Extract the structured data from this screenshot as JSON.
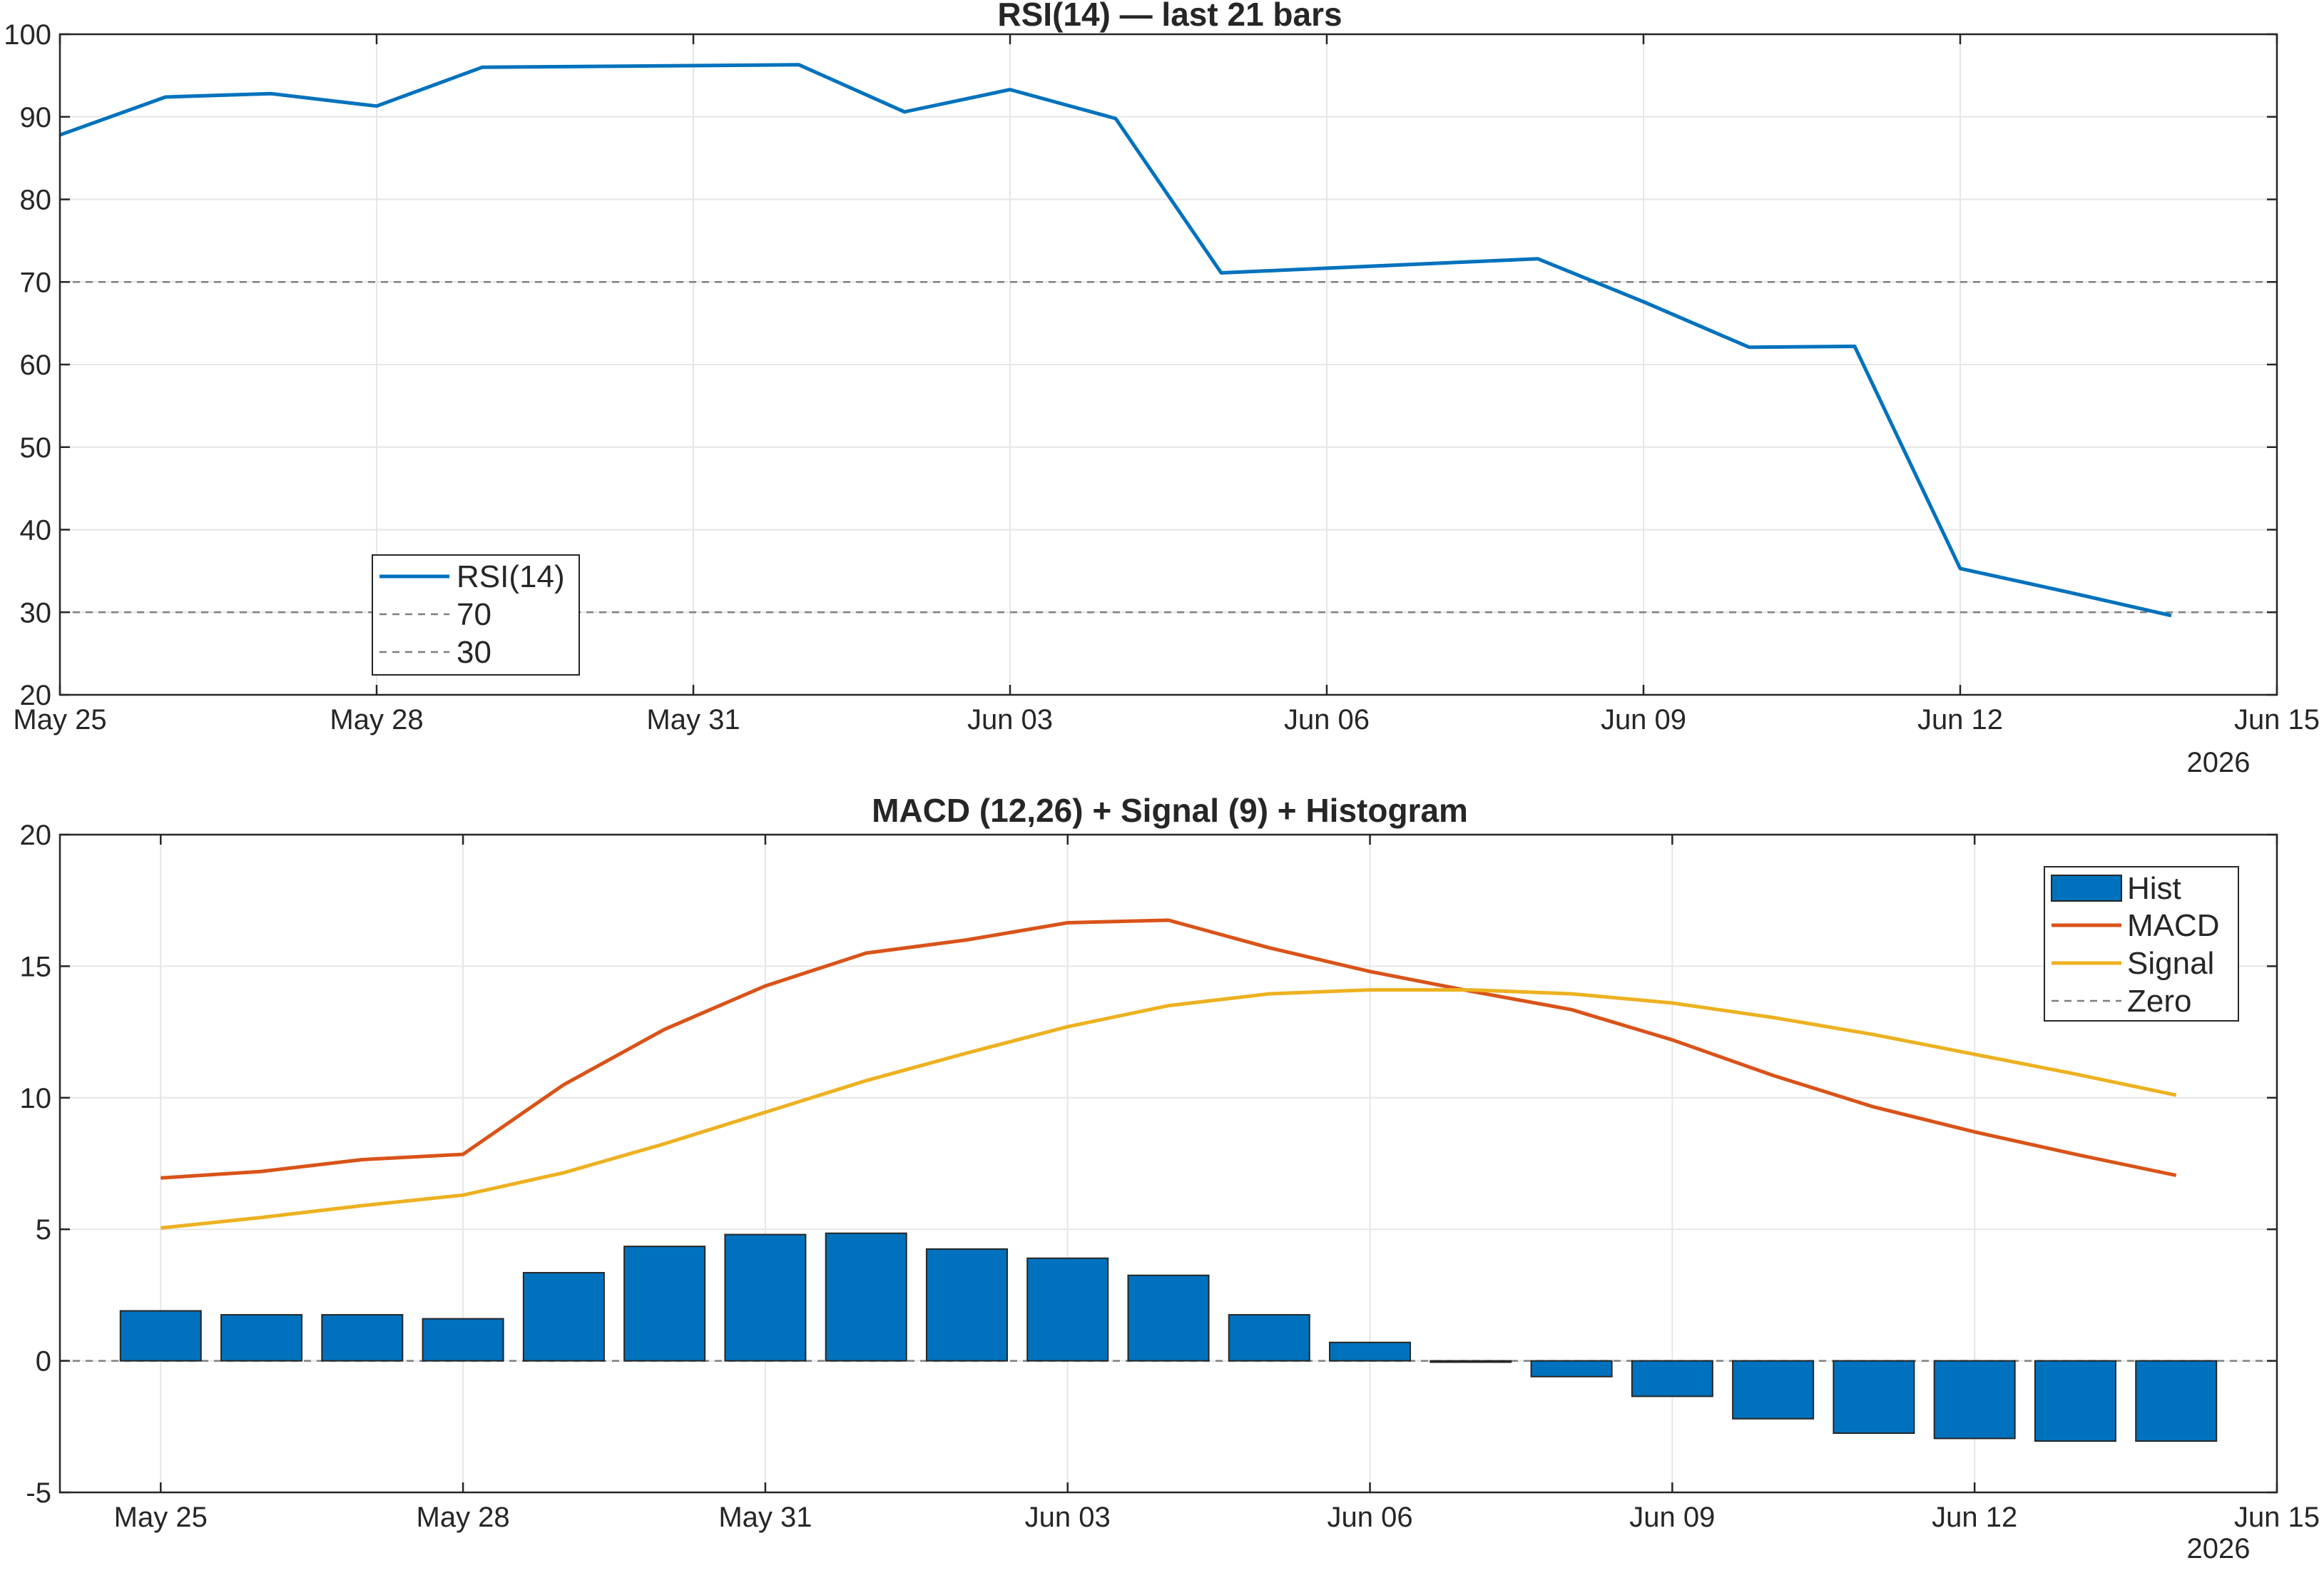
{
  "colors": {
    "rsi": "#0072BD",
    "macd": "#D95319",
    "signal": "#EDB120",
    "hist": "#0072BD",
    "ref_lines": "#7f7f7f",
    "grid": "#e6e6e6",
    "axis": "#262626"
  },
  "chart_data": [
    {
      "type": "line",
      "title": "RSI(14) — last 21 bars",
      "x_type": "date",
      "x_tick_labels": [
        "May 25",
        "May 28",
        "May 31",
        "Jun 03",
        "Jun 06",
        "Jun 09",
        "Jun 12",
        "Jun 15"
      ],
      "x_secondary_label": "2026",
      "xlim": [
        "2026-05-25",
        "2026-06-15"
      ],
      "ylim": [
        20,
        100
      ],
      "y_ticks": [
        20,
        30,
        40,
        50,
        60,
        70,
        80,
        90,
        100
      ],
      "grid": true,
      "legend_position": "bottom-left",
      "series": [
        {
          "name": "RSI(14)",
          "style": "solid",
          "x": [
            "2026-05-25",
            "2026-05-26",
            "2026-05-27",
            "2026-05-28",
            "2026-05-29",
            "2026-06-01",
            "2026-06-02",
            "2026-06-03",
            "2026-06-04",
            "2026-06-05",
            "2026-06-08",
            "2026-06-09",
            "2026-06-10",
            "2026-06-11",
            "2026-06-12",
            "2026-06-13",
            "2026-06-14"
          ],
          "y": [
            87.8,
            92.4,
            92.8,
            91.3,
            96.0,
            96.3,
            90.6,
            93.3,
            89.8,
            71.1,
            72.8,
            67.6,
            62.1,
            62.2,
            35.3,
            32.5,
            29.6
          ]
        },
        {
          "name": "70",
          "style": "dashed",
          "y_constant": 70
        },
        {
          "name": "30",
          "style": "dashed",
          "y_constant": 30
        }
      ]
    },
    {
      "type": "bar",
      "title": "MACD (12,26) + Signal (9) + Histogram",
      "x_type": "date",
      "x_tick_labels": [
        "May 25",
        "May 28",
        "May 31",
        "Jun 03",
        "Jun 06",
        "Jun 09",
        "Jun 12",
        "Jun 15"
      ],
      "x_secondary_label": "2026",
      "xlim": [
        "2026-05-24",
        "2026-06-15"
      ],
      "ylim": [
        -5,
        20
      ],
      "y_ticks": [
        -5,
        0,
        5,
        10,
        15,
        20
      ],
      "grid": true,
      "legend_position": "top-right",
      "x": [
        "2026-05-25",
        "2026-05-26",
        "2026-05-27",
        "2026-05-28",
        "2026-05-29",
        "2026-05-30",
        "2026-05-31",
        "2026-06-01",
        "2026-06-02",
        "2026-06-03",
        "2026-06-04",
        "2026-06-05",
        "2026-06-06",
        "2026-06-07",
        "2026-06-08",
        "2026-06-09",
        "2026-06-10",
        "2026-06-11",
        "2026-06-12",
        "2026-06-13",
        "2026-06-14"
      ],
      "series": [
        {
          "name": "Hist",
          "type": "bar",
          "values": [
            1.9,
            1.75,
            1.75,
            1.6,
            3.35,
            4.35,
            4.8,
            4.85,
            4.25,
            3.9,
            3.25,
            1.75,
            0.7,
            -0.05,
            -0.6,
            -1.35,
            -2.2,
            -2.75,
            -2.95,
            -3.05,
            -3.05
          ]
        },
        {
          "name": "MACD",
          "type": "line",
          "values": [
            6.95,
            7.2,
            7.65,
            7.85,
            10.5,
            12.6,
            14.25,
            15.5,
            16.0,
            16.65,
            16.75,
            15.7,
            14.8,
            14.05,
            13.35,
            12.2,
            10.85,
            9.65,
            8.7,
            7.85,
            7.05
          ]
        },
        {
          "name": "Signal",
          "type": "line",
          "values": [
            5.05,
            5.45,
            5.9,
            6.3,
            7.15,
            8.25,
            9.45,
            10.65,
            11.7,
            12.7,
            13.5,
            13.95,
            14.1,
            14.1,
            13.95,
            13.6,
            13.05,
            12.4,
            11.65,
            10.9,
            10.1
          ]
        },
        {
          "name": "Zero",
          "type": "dashed",
          "y_constant": 0
        }
      ]
    }
  ]
}
